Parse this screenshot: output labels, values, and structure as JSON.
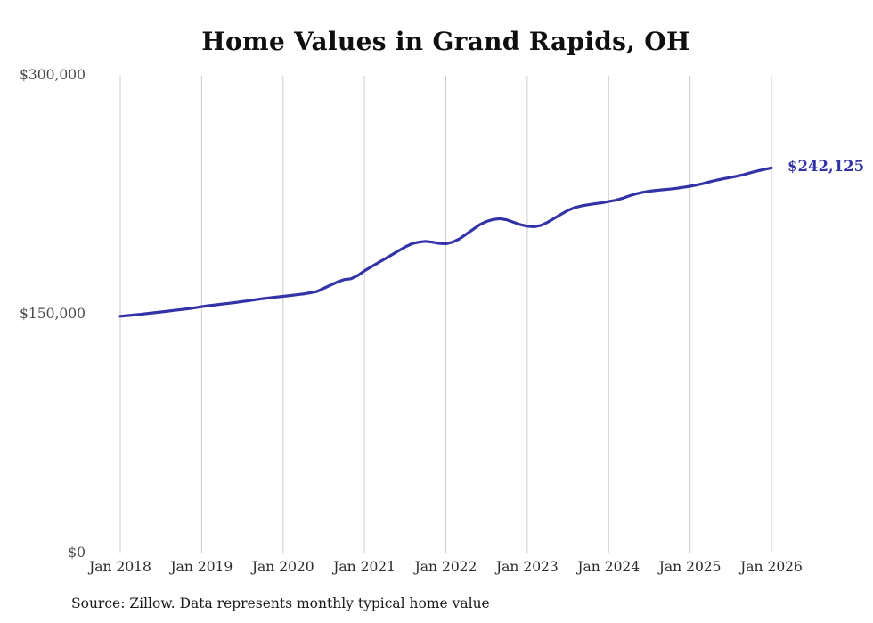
{
  "page": {
    "background": "#ffffff"
  },
  "source_note": "Source: Zillow. Data represents monthly typical home value",
  "colors": {
    "line": "#3333a8",
    "end_label": "#3333a8",
    "gridline": "#cccccc",
    "y_tick": "#4a4a4a",
    "x_tick": "#2a2a2a",
    "title": "#0f0f0f",
    "background": "#ffffff"
  },
  "chart_data": {
    "type": "line",
    "title": "Home Values in Grand Rapids, OH",
    "xlabel": "",
    "ylabel": "",
    "ylim": [
      0,
      300000
    ],
    "grid": "vertical-only",
    "legend": "none",
    "x_unit": "month",
    "x_range": [
      "Jan 2018",
      "Jan 2026"
    ],
    "y_ticks": [
      {
        "value": 0,
        "label": "$0"
      },
      {
        "value": 150000,
        "label": "$150,000"
      },
      {
        "value": 300000,
        "label": "$300,000"
      }
    ],
    "x_ticks": [
      {
        "index": 0,
        "label": "Jan 2018"
      },
      {
        "index": 12,
        "label": "Jan 2019"
      },
      {
        "index": 24,
        "label": "Jan 2020"
      },
      {
        "index": 36,
        "label": "Jan 2021"
      },
      {
        "index": 48,
        "label": "Jan 2022"
      },
      {
        "index": 60,
        "label": "Jan 2023"
      },
      {
        "index": 72,
        "label": "Jan 2024"
      },
      {
        "index": 84,
        "label": "Jan 2025"
      },
      {
        "index": 96,
        "label": "Jan 2026"
      }
    ],
    "series": [
      {
        "name": "Monthly typical home value",
        "color": "#3333a8",
        "values": [
          149000,
          149400,
          149800,
          150200,
          150700,
          151200,
          151700,
          152200,
          152700,
          153200,
          153700,
          154300,
          155000,
          155600,
          156100,
          156600,
          157100,
          157600,
          158200,
          158800,
          159400,
          160000,
          160500,
          161000,
          161500,
          162000,
          162500,
          163000,
          163700,
          164500,
          166500,
          168500,
          170500,
          172000,
          172500,
          174500,
          177500,
          180000,
          182500,
          185000,
          187500,
          190000,
          192500,
          194500,
          195500,
          196000,
          195500,
          194800,
          194500,
          195500,
          197500,
          200500,
          203500,
          206500,
          208500,
          209800,
          210200,
          209500,
          208000,
          206500,
          205500,
          205200,
          206000,
          208000,
          210500,
          213000,
          215500,
          217200,
          218300,
          219000,
          219600,
          220200,
          221000,
          221800,
          223000,
          224500,
          225800,
          226800,
          227500,
          228000,
          228400,
          228800,
          229300,
          229900,
          230600,
          231400,
          232400,
          233500,
          234500,
          235400,
          236200,
          237000,
          238000,
          239200,
          240300,
          241300,
          242125
        ]
      }
    ],
    "end_annotation": {
      "text": "$242,125",
      "value": 242125
    }
  }
}
